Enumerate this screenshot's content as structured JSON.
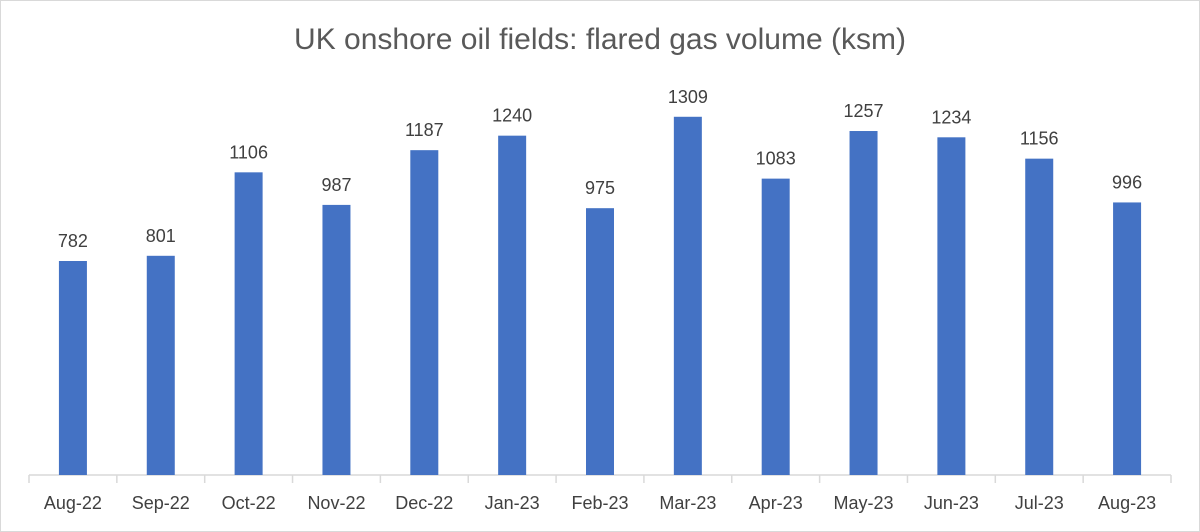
{
  "chart_data": {
    "type": "bar",
    "title": "UK onshore oil fields: flared gas volume (ksm)",
    "categories": [
      "Aug-22",
      "Sep-22",
      "Oct-22",
      "Nov-22",
      "Dec-22",
      "Jan-23",
      "Feb-23",
      "Mar-23",
      "Apr-23",
      "May-23",
      "Jun-23",
      "Jul-23",
      "Aug-23"
    ],
    "values": [
      782,
      801,
      1106,
      987,
      1187,
      1240,
      975,
      1309,
      1083,
      1257,
      1234,
      1156,
      996
    ],
    "xlabel": "",
    "ylabel": "",
    "ylim": [
      0,
      1600
    ],
    "grid": false,
    "legend": "none",
    "data_labels": true,
    "colors": {
      "bar": "#4472c4",
      "text": "#404040",
      "title": "#595959",
      "axis": "#d9d9d9"
    }
  }
}
